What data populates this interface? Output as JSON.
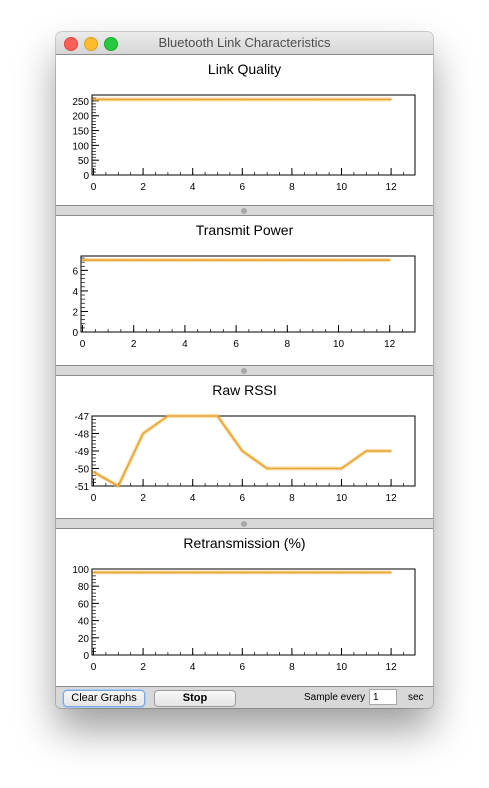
{
  "window": {
    "title": "Bluetooth Link Characteristics"
  },
  "controls": {
    "clear_label": "Clear Graphs",
    "stop_label": "Stop",
    "sample_label": "Sample every",
    "sample_value": "1",
    "sample_unit": "sec"
  },
  "colors": {
    "line": "#f2b84b",
    "accent": "#e8a430"
  },
  "chart_data": [
    {
      "type": "line",
      "title": "Link Quality",
      "xlim": [
        0,
        13
      ],
      "ylim": [
        0,
        270
      ],
      "xticks": [
        0,
        2,
        4,
        6,
        8,
        10,
        12
      ],
      "yticks": [
        0,
        50,
        100,
        150,
        200,
        250
      ],
      "x": [
        0,
        1,
        2,
        3,
        4,
        5,
        6,
        7,
        8,
        9,
        10,
        11,
        12
      ],
      "values": [
        255,
        255,
        255,
        255,
        255,
        255,
        255,
        255,
        255,
        255,
        255,
        255,
        255
      ]
    },
    {
      "type": "line",
      "title": "Transmit Power",
      "xlim": [
        0,
        13
      ],
      "ylim": [
        0,
        7.4
      ],
      "xticks": [
        0,
        2,
        4,
        6,
        8,
        10,
        12
      ],
      "yticks": [
        0,
        2,
        4,
        6
      ],
      "x": [
        0,
        1,
        2,
        3,
        4,
        5,
        6,
        7,
        8,
        9,
        10,
        11,
        12
      ],
      "values": [
        7,
        7,
        7,
        7,
        7,
        7,
        7,
        7,
        7,
        7,
        7,
        7,
        7
      ]
    },
    {
      "type": "line",
      "title": "Raw RSSI",
      "xlim": [
        0,
        13
      ],
      "ylim": [
        -51,
        -47
      ],
      "xticks": [
        0,
        2,
        4,
        6,
        8,
        10,
        12
      ],
      "yticks": [
        -51,
        -50,
        -49,
        -48,
        -47
      ],
      "x": [
        0,
        1,
        2,
        3,
        4,
        5,
        6,
        7,
        8,
        9,
        10,
        11,
        12
      ],
      "values": [
        -50.2,
        -51,
        -48,
        -47,
        -47,
        -47,
        -49,
        -50,
        -50,
        -50,
        -50,
        -49,
        -49
      ]
    },
    {
      "type": "line",
      "title": "Retransmission (%)",
      "xlim": [
        0,
        13
      ],
      "ylim": [
        0,
        100
      ],
      "xticks": [
        0,
        2,
        4,
        6,
        8,
        10,
        12
      ],
      "yticks": [
        0,
        20,
        40,
        60,
        80,
        100
      ],
      "x": [
        0,
        1,
        2,
        3,
        4,
        5,
        6,
        7,
        8,
        9,
        10,
        11,
        12
      ],
      "values": [
        96,
        96,
        96,
        96,
        96,
        96,
        96,
        96,
        96,
        96,
        96,
        96,
        96
      ]
    }
  ]
}
